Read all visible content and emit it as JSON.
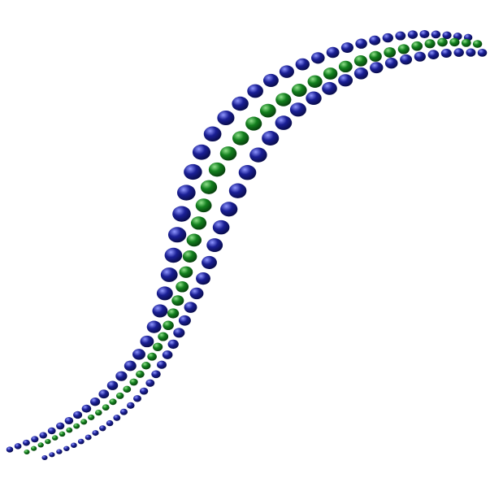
{
  "image": {
    "background": "#ffffff",
    "strands": [
      {
        "role": "outer-left",
        "color": "#1a1f95",
        "highlight": "#8f96ff",
        "shade": "#070a45"
      },
      {
        "role": "center",
        "color": "#13801e",
        "highlight": "#8fe08a",
        "shade": "#053a0a"
      },
      {
        "role": "outer-right",
        "color": "#1a1f95",
        "highlight": "#8f96ff",
        "shade": "#070a45"
      }
    ]
  }
}
